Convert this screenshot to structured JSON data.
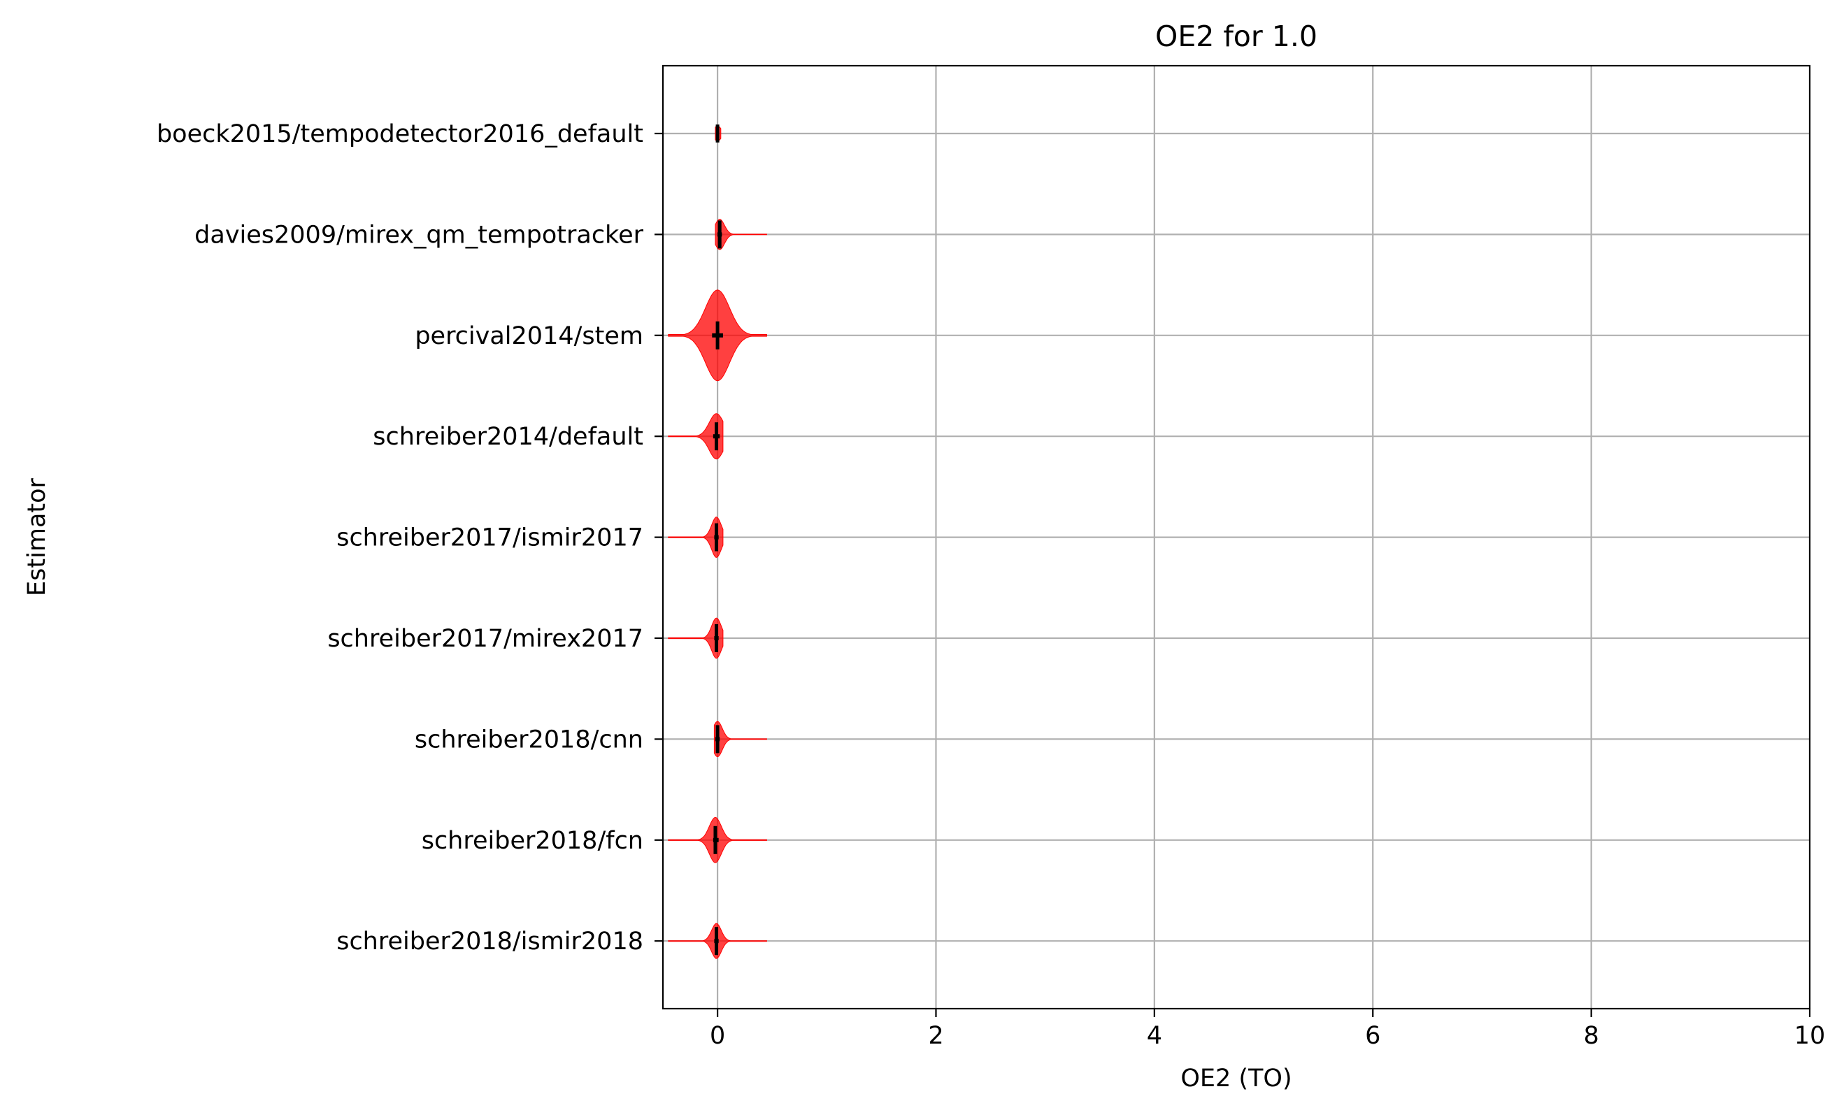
{
  "chart_data": {
    "type": "violin",
    "title": "OE2 for 1.0",
    "xlabel": "OE2 (TO)",
    "ylabel": "Estimator",
    "xlim": [
      -0.5,
      10
    ],
    "xticks": [
      0,
      2,
      4,
      6,
      8,
      10
    ],
    "xtick_labels": [
      "0",
      "2",
      "4",
      "6",
      "8",
      "10"
    ],
    "grid": true,
    "violin_color": "#ff0000",
    "median_color": "#000000",
    "categories": [
      "boeck2015/tempodetector2016_default",
      "davies2009/mirex_qm_tempotracker",
      "percival2014/stem",
      "schreiber2014/default",
      "schreiber2017/ismir2017",
      "schreiber2017/mirex2017",
      "schreiber2018/cnn",
      "schreiber2018/fcn",
      "schreiber2018/ismir2018"
    ],
    "series": [
      {
        "median": 0.0,
        "q1": -0.01,
        "q3": 0.01,
        "min": -0.02,
        "max": 0.03,
        "halfwidth": 0.15
      },
      {
        "median": 0.02,
        "q1": 0.0,
        "q3": 0.04,
        "min": -0.02,
        "max": 0.45,
        "halfwidth": 0.3
      },
      {
        "median": 0.0,
        "q1": -0.05,
        "q3": 0.05,
        "min": -0.45,
        "max": 0.45,
        "halfwidth": 0.9
      },
      {
        "median": -0.01,
        "q1": -0.04,
        "q3": 0.02,
        "min": -0.45,
        "max": 0.05,
        "halfwidth": 0.45
      },
      {
        "median": -0.01,
        "q1": -0.03,
        "q3": 0.01,
        "min": -0.45,
        "max": 0.05,
        "halfwidth": 0.4
      },
      {
        "median": -0.01,
        "q1": -0.03,
        "q3": 0.01,
        "min": -0.45,
        "max": 0.05,
        "halfwidth": 0.4
      },
      {
        "median": 0.0,
        "q1": -0.02,
        "q3": 0.02,
        "min": -0.03,
        "max": 0.45,
        "halfwidth": 0.35
      },
      {
        "median": -0.02,
        "q1": -0.04,
        "q3": 0.01,
        "min": -0.45,
        "max": 0.45,
        "halfwidth": 0.45
      },
      {
        "median": -0.01,
        "q1": -0.03,
        "q3": 0.01,
        "min": -0.45,
        "max": 0.45,
        "halfwidth": 0.35
      }
    ]
  }
}
